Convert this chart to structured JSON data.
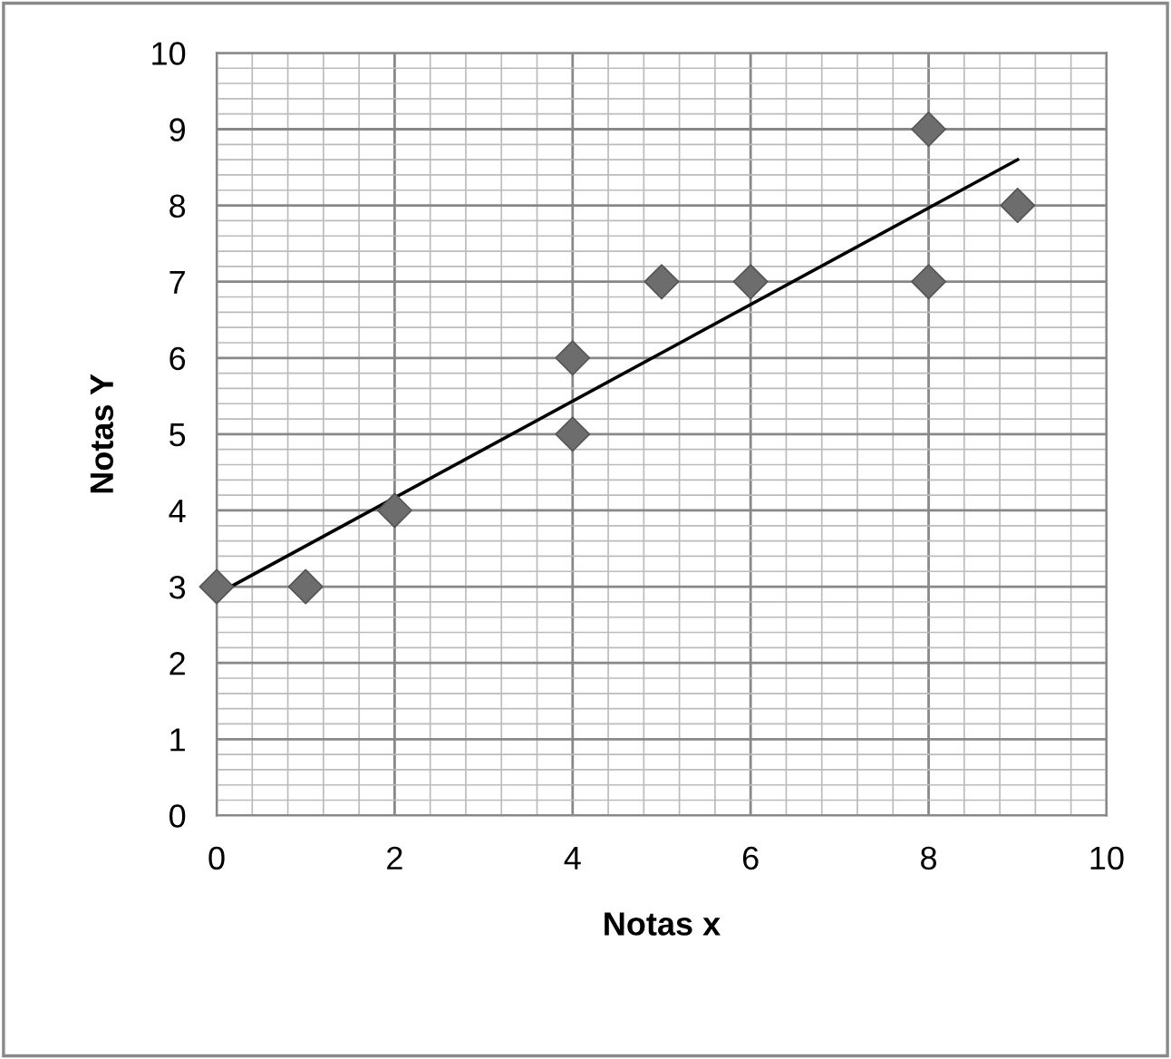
{
  "chart_data": {
    "type": "scatter",
    "xlabel": "Notas x",
    "ylabel": "Notas Y",
    "xlim": [
      0,
      10
    ],
    "ylim": [
      0,
      10
    ],
    "xticks": [
      0,
      2,
      4,
      6,
      8,
      10
    ],
    "yticks": [
      0,
      1,
      2,
      3,
      4,
      5,
      6,
      7,
      8,
      9,
      10
    ],
    "grid": true,
    "marker": "diamond",
    "legend": false,
    "series": [
      {
        "color": "#6d6d6d",
        "x": [
          0,
          1,
          2,
          4,
          4,
          5,
          6,
          8,
          8,
          9
        ],
        "values": [
          3,
          3,
          4,
          6,
          5,
          7,
          7,
          9,
          7,
          8
        ]
      },
      {
        "type": "line",
        "color": "#000000",
        "x": [
          0,
          9
        ],
        "values": [
          2.9,
          8.6
        ],
        "marker": "none"
      }
    ]
  }
}
